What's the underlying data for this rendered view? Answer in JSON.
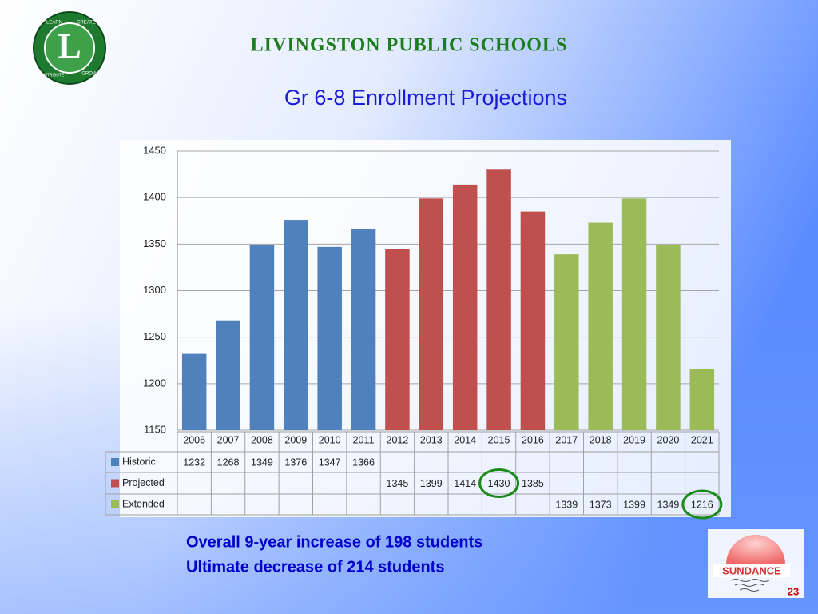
{
  "header": {
    "school": "LIVINGSTON PUBLIC SCHOOLS",
    "logo_letter": "L",
    "logo_words": [
      "LEARN",
      "CREATE",
      "CONTRIBUTE",
      "GROW"
    ]
  },
  "chart_data": {
    "type": "bar",
    "title": "Gr 6-8 Enrollment Projections",
    "categories": [
      "2006",
      "2007",
      "2008",
      "2009",
      "2010",
      "2011",
      "2012",
      "2013",
      "2014",
      "2015",
      "2016",
      "2017",
      "2018",
      "2019",
      "2020",
      "2021"
    ],
    "series": [
      {
        "name": "Historic",
        "color": "#4f81bd",
        "values": [
          1232,
          1268,
          1349,
          1376,
          1347,
          1366,
          null,
          null,
          null,
          null,
          null,
          null,
          null,
          null,
          null,
          null
        ]
      },
      {
        "name": "Projected",
        "color": "#c0504d",
        "values": [
          null,
          null,
          null,
          null,
          null,
          null,
          1345,
          1399,
          1414,
          1430,
          1385,
          null,
          null,
          null,
          null,
          null
        ]
      },
      {
        "name": "Extended",
        "color": "#9bbb59",
        "values": [
          null,
          null,
          null,
          null,
          null,
          null,
          null,
          null,
          null,
          null,
          null,
          1339,
          1373,
          1399,
          1349,
          1216
        ]
      }
    ],
    "ylim": [
      1150,
      1450
    ],
    "yticks": [
      1150,
      1200,
      1250,
      1300,
      1350,
      1400,
      1450
    ],
    "grid": true
  },
  "notes": [
    "Overall 9-year increase of 198 students",
    "Ultimate decrease of 214 students"
  ],
  "footer": {
    "brand": "SUNDANCE",
    "page_number": "23"
  }
}
